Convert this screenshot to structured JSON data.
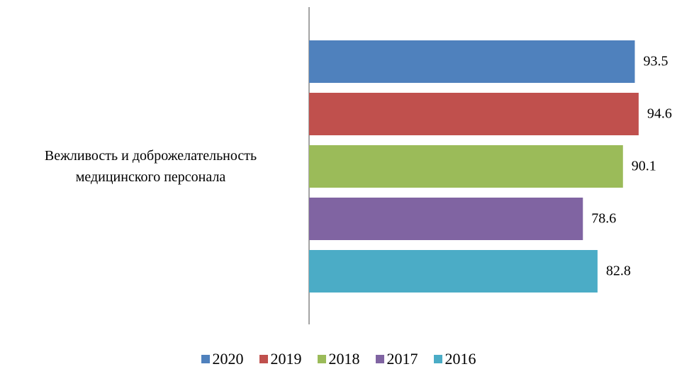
{
  "chart_data": {
    "type": "bar",
    "orientation": "horizontal",
    "categories": [
      "Вежливость и доброжелательность медицинского персонала"
    ],
    "series": [
      {
        "name": "2020",
        "color": "#4f81bd",
        "values": [
          93.5
        ]
      },
      {
        "name": "2019",
        "color": "#c0504d",
        "values": [
          94.6
        ]
      },
      {
        "name": "2018",
        "color": "#9bbb59",
        "values": [
          90.1
        ]
      },
      {
        "name": "2017",
        "color": "#8064a2",
        "values": [
          78.6
        ]
      },
      {
        "name": "2016",
        "color": "#4bacc6",
        "values": [
          82.8
        ]
      }
    ],
    "xlim": [
      0,
      105
    ],
    "legend": "bottom"
  }
}
